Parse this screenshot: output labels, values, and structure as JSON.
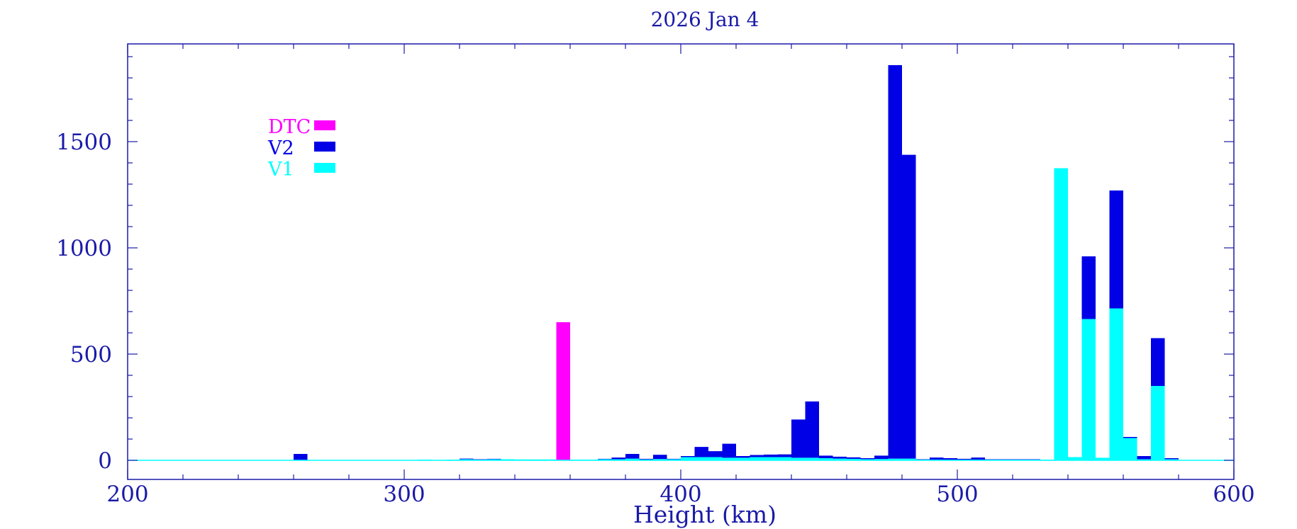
{
  "chart_data": {
    "type": "bar",
    "stacked": true,
    "title": "2026 Jan 4",
    "xlabel": "Height (km)",
    "ylabel": "",
    "xlim": [
      200,
      600
    ],
    "ylim": [
      -90,
      1960
    ],
    "bin_width": 5,
    "x_ticks": [
      200,
      300,
      400,
      500,
      600
    ],
    "x_tick_labels": [
      "200",
      "300",
      "400",
      "500",
      "600"
    ],
    "y_ticks": [
      0,
      500,
      1000,
      1500
    ],
    "y_tick_labels": [
      "0",
      "500",
      "1000",
      "1500"
    ],
    "grid": false,
    "legend_position": "top-left",
    "x": [
      260,
      305,
      315,
      320,
      325,
      330,
      335,
      340,
      345,
      350,
      355,
      360,
      365,
      370,
      375,
      380,
      385,
      390,
      395,
      400,
      405,
      410,
      415,
      420,
      425,
      430,
      435,
      440,
      445,
      450,
      455,
      460,
      465,
      470,
      475,
      480,
      485,
      490,
      495,
      500,
      505,
      510,
      515,
      520,
      525,
      530,
      535,
      540,
      545,
      550,
      555,
      560,
      565,
      570,
      575
    ],
    "series": [
      {
        "name": "V1",
        "color": "#00ffff",
        "values": [
          0,
          3,
          3,
          5,
          3,
          5,
          5,
          4,
          4,
          4,
          0,
          3,
          3,
          5,
          5,
          8,
          4,
          6,
          5,
          15,
          15,
          15,
          12,
          12,
          15,
          15,
          15,
          12,
          12,
          10,
          8,
          7,
          5,
          6,
          8,
          8,
          3,
          3,
          3,
          3,
          3,
          3,
          3,
          3,
          3,
          3,
          1375,
          15,
          665,
          12,
          715,
          105,
          5,
          350,
          5
        ]
      },
      {
        "name": "V2",
        "color": "#0000e6",
        "values": [
          30,
          0,
          0,
          3,
          2,
          2,
          0,
          0,
          0,
          0,
          0,
          0,
          0,
          2,
          8,
          22,
          3,
          20,
          2,
          5,
          48,
          28,
          66,
          8,
          10,
          12,
          13,
          180,
          265,
          12,
          9,
          7,
          5,
          16,
          1852,
          1430,
          2,
          10,
          7,
          4,
          10,
          2,
          2,
          2,
          2,
          0,
          0,
          0,
          295,
          0,
          555,
          5,
          15,
          225,
          5
        ]
      },
      {
        "name": "DTC",
        "color": "#ff00ff",
        "values": [
          0,
          0,
          0,
          0,
          0,
          0,
          0,
          0,
          0,
          0,
          650,
          0,
          0,
          0,
          0,
          0,
          0,
          0,
          0,
          0,
          0,
          0,
          0,
          0,
          0,
          0,
          0,
          0,
          0,
          0,
          0,
          0,
          0,
          0,
          0,
          0,
          0,
          0,
          0,
          0,
          0,
          0,
          0,
          0,
          0,
          0,
          0,
          0,
          0,
          0,
          0,
          0,
          0,
          0,
          0
        ]
      }
    ],
    "legend_order": [
      "DTC",
      "V2",
      "V1"
    ],
    "axis_color": "#1a1aa8",
    "baseline_color": "#00ffff"
  }
}
